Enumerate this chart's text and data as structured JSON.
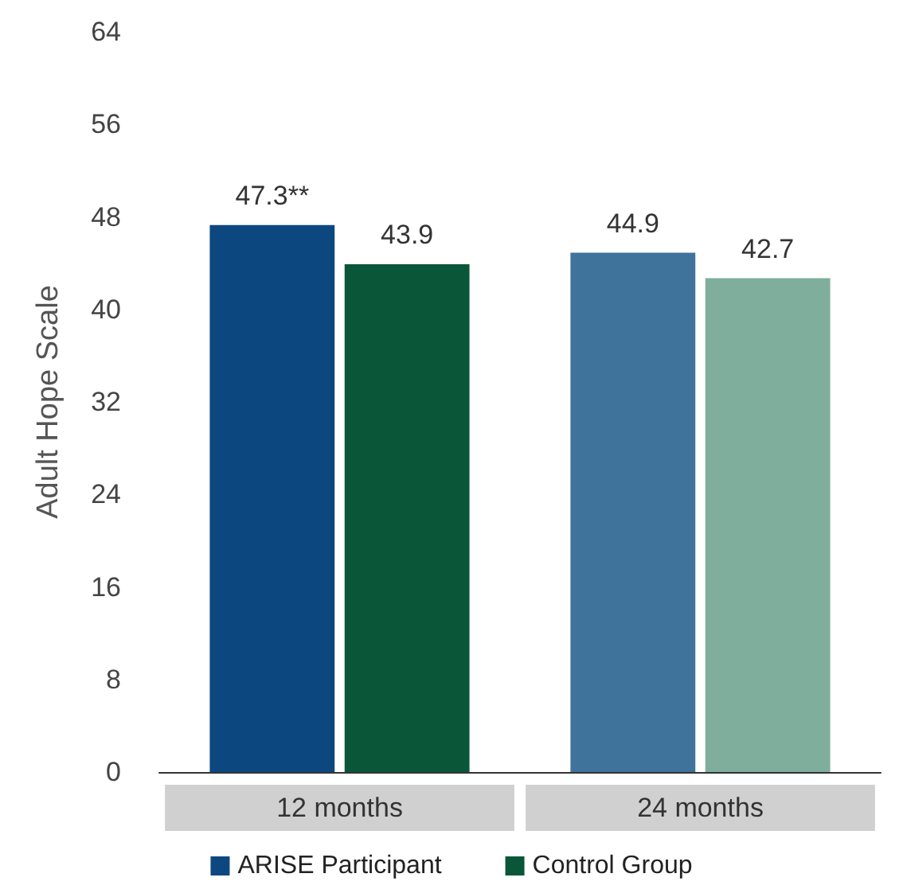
{
  "chart_data": {
    "type": "bar",
    "ylabel": "Adult Hope Scale",
    "categories": [
      "12 months",
      "24 months"
    ],
    "series": [
      {
        "name": "ARISE Participant",
        "color": "#0d477f",
        "colors": [
          "#0d477f",
          "#3f739c"
        ],
        "values": [
          47.3,
          44.9
        ],
        "value_labels": [
          "47.3**",
          "44.9"
        ]
      },
      {
        "name": "Control Group",
        "color": "#0a5638",
        "colors": [
          "#0a5638",
          "#7fae9c"
        ],
        "values": [
          43.9,
          42.7
        ],
        "value_labels": [
          "43.9",
          "42.7"
        ]
      }
    ],
    "ylim": [
      0,
      64
    ],
    "yticks": [
      0,
      8,
      16,
      24,
      32,
      40,
      48,
      56,
      64
    ],
    "grid": false,
    "legend": "bottom"
  }
}
